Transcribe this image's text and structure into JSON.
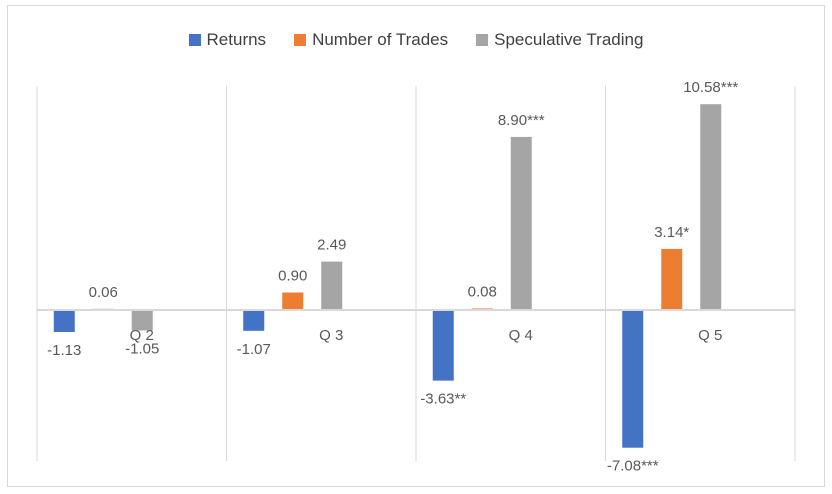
{
  "chart_data": {
    "type": "bar",
    "categories": [
      "Q 2",
      "Q 3",
      "Q 4",
      "Q 5"
    ],
    "series": [
      {
        "name": "Returns",
        "color": "#4472c4",
        "values": [
          -1.13,
          -1.07,
          -3.63,
          -7.08
        ],
        "labels": [
          "-1.13",
          "-1.07",
          "-3.63**",
          "-7.08***"
        ]
      },
      {
        "name": "Number of Trades",
        "color": "#ed7d31",
        "values": [
          0.06,
          0.9,
          0.08,
          3.14
        ],
        "labels": [
          "0.06",
          "0.90",
          "0.08",
          "3.14*"
        ]
      },
      {
        "name": "Speculative Trading",
        "color": "#a5a5a5",
        "values": [
          -1.05,
          2.49,
          8.9,
          10.58
        ],
        "labels": [
          "-1.05",
          "2.49",
          "8.90***",
          "10.58***"
        ]
      }
    ],
    "legend_position": "top",
    "grid": "vertical category separators",
    "ylim": [
      -7.08,
      10.58
    ]
  }
}
